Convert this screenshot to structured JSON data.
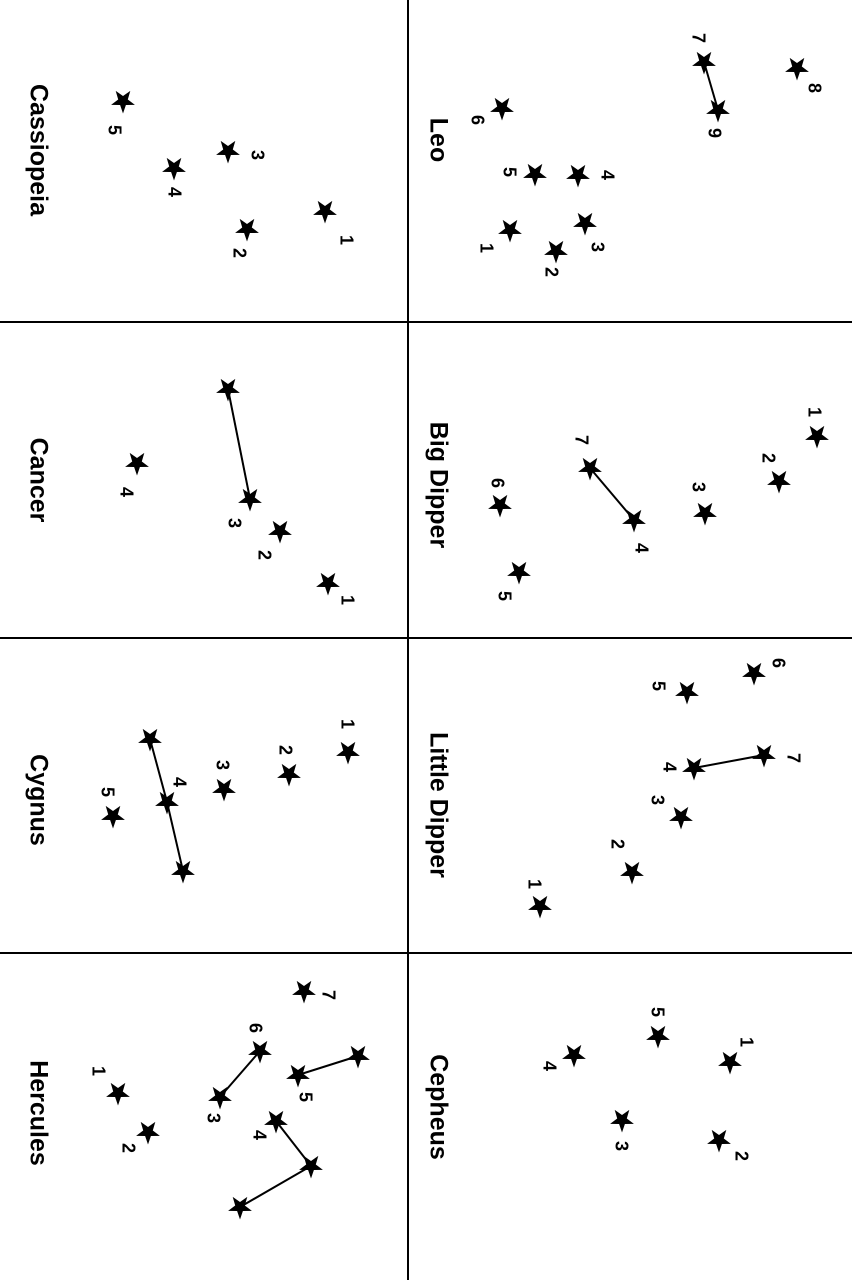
{
  "panels": [
    {
      "title": "Leo",
      "stars": [
        "1",
        "2",
        "3",
        "4",
        "5",
        "6",
        "7",
        "8",
        "9"
      ]
    },
    {
      "title": "Cassiopeia",
      "stars": [
        "1",
        "2",
        "3",
        "4",
        "5"
      ]
    },
    {
      "title": "Big Dipper",
      "stars": [
        "1",
        "2",
        "3",
        "4",
        "5",
        "6",
        "7"
      ]
    },
    {
      "title": "Cancer",
      "stars": [
        "1",
        "2",
        "3",
        "4"
      ]
    },
    {
      "title": "Little Dipper",
      "stars": [
        "1",
        "2",
        "3",
        "4",
        "5",
        "6",
        "7"
      ]
    },
    {
      "title": "Cygnus",
      "stars": [
        "1",
        "2",
        "3",
        "4",
        "5"
      ]
    },
    {
      "title": "Cepheus",
      "stars": [
        "1",
        "2",
        "3",
        "4",
        "5"
      ]
    },
    {
      "title": "Hercules",
      "stars": [
        "1",
        "2",
        "3",
        "4",
        "5",
        "6",
        "7"
      ]
    }
  ]
}
